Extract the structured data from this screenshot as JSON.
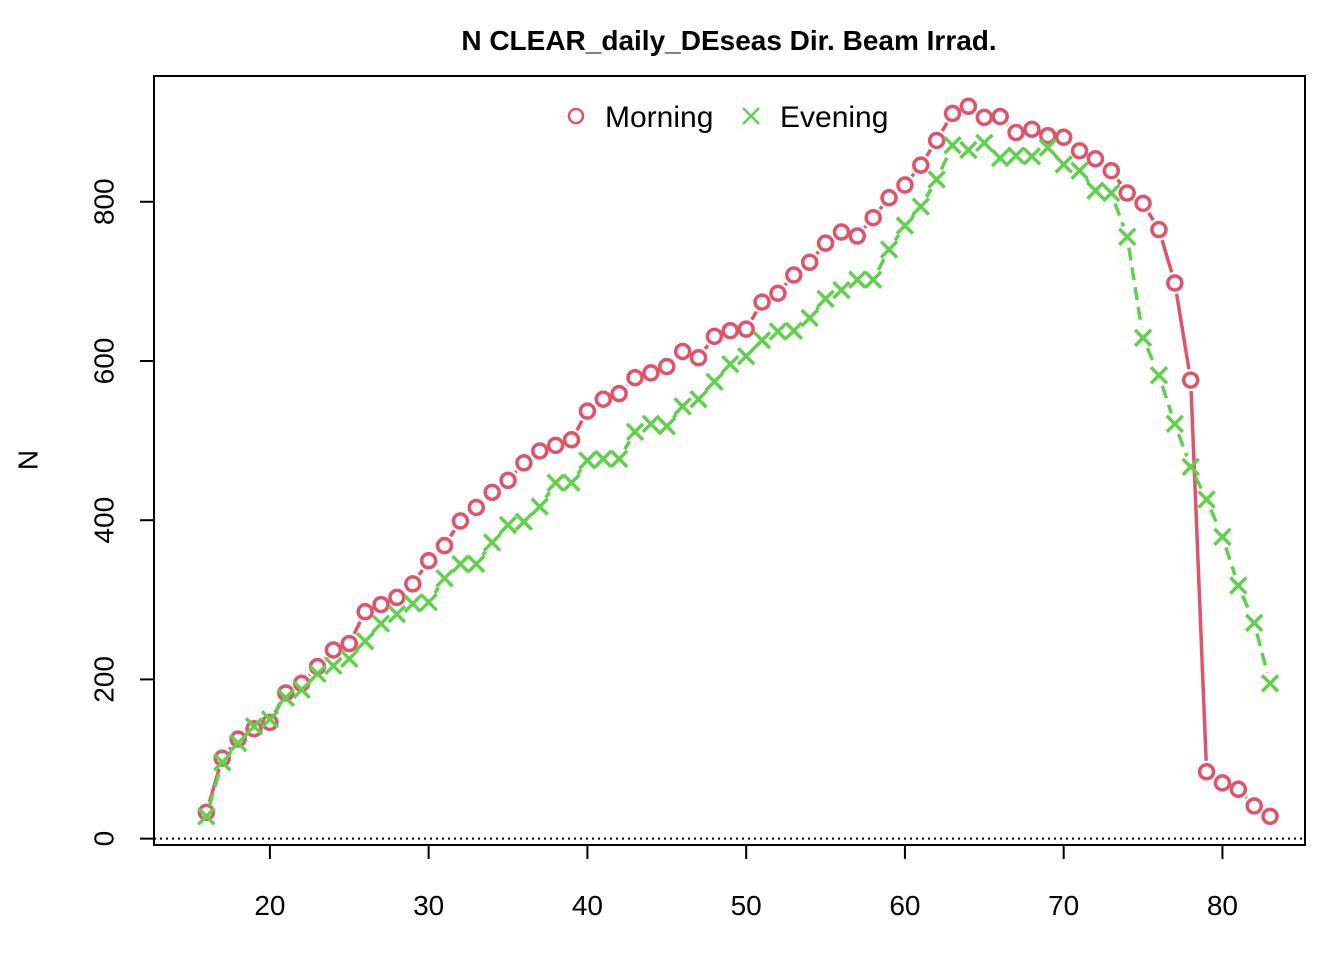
{
  "chart_data": {
    "type": "scatter",
    "title": "N CLEAR_daily_DEseas Dir. Beam Irrad.",
    "xlabel": "",
    "ylabel": "N",
    "xlim": [
      12.7,
      85.2
    ],
    "ylim": [
      -8,
      958
    ],
    "xticks": [
      20,
      30,
      40,
      50,
      60,
      70,
      80
    ],
    "yticks": [
      0,
      200,
      400,
      600,
      800
    ],
    "reference_line_y": 0,
    "legend_position": "top",
    "colors": {
      "morning": "#DF536B",
      "evening": "#61D04F"
    },
    "series": [
      {
        "name": "Morning",
        "marker": "circle",
        "line": "solid",
        "x": [
          16,
          17,
          18,
          19,
          20,
          21,
          22,
          23,
          24,
          25,
          26,
          27,
          28,
          29,
          30,
          31,
          32,
          33,
          34,
          35,
          36,
          37,
          38,
          39,
          40,
          41,
          42,
          43,
          44,
          45,
          46,
          47,
          48,
          49,
          50,
          51,
          52,
          53,
          54,
          55,
          56,
          57,
          58,
          59,
          60,
          61,
          62,
          63,
          64,
          65,
          66,
          67,
          68,
          69,
          70,
          71,
          72,
          73,
          74,
          75,
          76,
          77,
          78,
          79,
          80,
          81,
          82,
          83
        ],
        "values": [
          33,
          101,
          125,
          138,
          146,
          183,
          195,
          216,
          237,
          245,
          285,
          294,
          303,
          320,
          349,
          368,
          399,
          416,
          435,
          450,
          472,
          487,
          494,
          501,
          537,
          552,
          559,
          579,
          585,
          593,
          612,
          604,
          631,
          638,
          640,
          674,
          685,
          708,
          724,
          748,
          762,
          757,
          780,
          805,
          821,
          846,
          877,
          911,
          920,
          906,
          907,
          887,
          891,
          883,
          881,
          864,
          854,
          839,
          811,
          798,
          765,
          698,
          576,
          84,
          70,
          62,
          41,
          28
        ]
      },
      {
        "name": "Evening",
        "marker": "cross",
        "line": "dashed",
        "x": [
          16,
          17,
          18,
          19,
          20,
          21,
          22,
          23,
          24,
          25,
          26,
          27,
          28,
          29,
          30,
          31,
          32,
          33,
          34,
          35,
          36,
          37,
          38,
          39,
          40,
          41,
          42,
          43,
          44,
          45,
          46,
          47,
          48,
          49,
          50,
          51,
          52,
          53,
          54,
          55,
          56,
          57,
          58,
          59,
          60,
          61,
          62,
          63,
          64,
          65,
          66,
          67,
          68,
          69,
          70,
          71,
          72,
          73,
          74,
          75,
          76,
          77,
          78,
          79,
          80,
          81,
          82,
          83
        ],
        "values": [
          28,
          96,
          120,
          141,
          150,
          177,
          187,
          207,
          217,
          226,
          248,
          270,
          282,
          295,
          297,
          327,
          345,
          345,
          372,
          394,
          398,
          417,
          447,
          447,
          475,
          477,
          477,
          511,
          521,
          518,
          543,
          552,
          574,
          596,
          606,
          626,
          637,
          638,
          654,
          678,
          689,
          702,
          702,
          740,
          770,
          794,
          828,
          871,
          865,
          874,
          855,
          858,
          857,
          868,
          847,
          839,
          814,
          811,
          756,
          629,
          582,
          521,
          467,
          426,
          379,
          318,
          271,
          195
        ]
      }
    ]
  }
}
